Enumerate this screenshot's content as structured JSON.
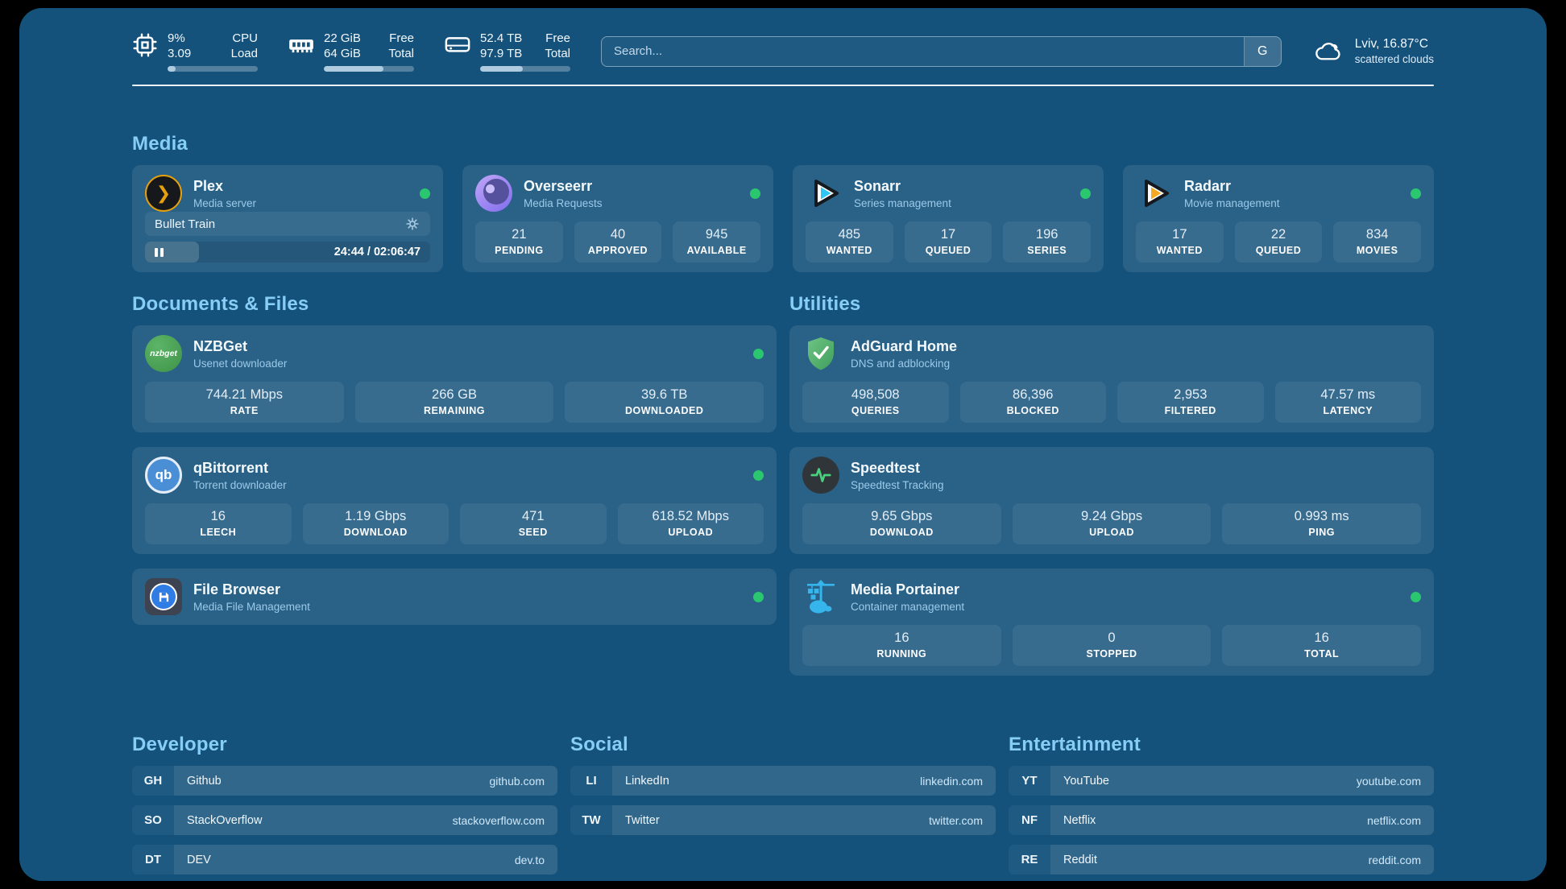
{
  "topbar": {
    "stats": [
      {
        "values": [
          "9%",
          "3.09"
        ],
        "labels": [
          "CPU",
          "Load"
        ],
        "progress": 9
      },
      {
        "values": [
          "22 GiB",
          "64 GiB"
        ],
        "labels": [
          "Free",
          "Total"
        ],
        "progress": 66
      },
      {
        "values": [
          "52.4 TB",
          "97.9 TB"
        ],
        "labels": [
          "Free",
          "Total"
        ],
        "progress": 47
      }
    ],
    "search": {
      "placeholder": "Search...",
      "button_label": "G"
    },
    "weather": {
      "location": "Lviv, 16.87°C",
      "condition": "scattered clouds"
    }
  },
  "media": {
    "section_title": "Media",
    "plex": {
      "name": "Plex",
      "subtitle": "Media server",
      "now_playing": "Bullet Train",
      "time_display": "24:44 / 02:06:47",
      "progress": 19
    },
    "overseerr": {
      "name": "Overseerr",
      "subtitle": "Media Requests",
      "stats": [
        {
          "value": "21",
          "label": "PENDING"
        },
        {
          "value": "40",
          "label": "APPROVED"
        },
        {
          "value": "945",
          "label": "AVAILABLE"
        }
      ]
    },
    "sonarr": {
      "name": "Sonarr",
      "subtitle": "Series management",
      "stats": [
        {
          "value": "485",
          "label": "WANTED"
        },
        {
          "value": "17",
          "label": "QUEUED"
        },
        {
          "value": "196",
          "label": "SERIES"
        }
      ]
    },
    "radarr": {
      "name": "Radarr",
      "subtitle": "Movie management",
      "stats": [
        {
          "value": "17",
          "label": "WANTED"
        },
        {
          "value": "22",
          "label": "QUEUED"
        },
        {
          "value": "834",
          "label": "MOVIES"
        }
      ]
    }
  },
  "documents": {
    "section_title": "Documents & Files",
    "nzbget": {
      "name": "NZBGet",
      "subtitle": "Usenet downloader",
      "logo_text": "nzbget",
      "stats": [
        {
          "value": "744.21 Mbps",
          "label": "RATE"
        },
        {
          "value": "266 GB",
          "label": "REMAINING"
        },
        {
          "value": "39.6 TB",
          "label": "DOWNLOADED"
        }
      ]
    },
    "qbittorrent": {
      "name": "qBittorrent",
      "subtitle": "Torrent downloader",
      "logo_text": "qb",
      "stats": [
        {
          "value": "16",
          "label": "LEECH"
        },
        {
          "value": "1.19 Gbps",
          "label": "DOWNLOAD"
        },
        {
          "value": "471",
          "label": "SEED"
        },
        {
          "value": "618.52 Mbps",
          "label": "UPLOAD"
        }
      ]
    },
    "filebrowser": {
      "name": "File Browser",
      "subtitle": "Media File Management"
    }
  },
  "utilities": {
    "section_title": "Utilities",
    "adguard": {
      "name": "AdGuard Home",
      "subtitle": "DNS and adblocking",
      "stats": [
        {
          "value": "498,508",
          "label": "QUERIES"
        },
        {
          "value": "86,396",
          "label": "BLOCKED"
        },
        {
          "value": "2,953",
          "label": "FILTERED"
        },
        {
          "value": "47.57 ms",
          "label": "LATENCY"
        }
      ]
    },
    "speedtest": {
      "name": "Speedtest",
      "subtitle": "Speedtest Tracking",
      "stats": [
        {
          "value": "9.65 Gbps",
          "label": "DOWNLOAD"
        },
        {
          "value": "9.24 Gbps",
          "label": "UPLOAD"
        },
        {
          "value": "0.993 ms",
          "label": "PING"
        }
      ]
    },
    "portainer": {
      "name": "Media Portainer",
      "subtitle": "Container management",
      "stats": [
        {
          "value": "16",
          "label": "RUNNING"
        },
        {
          "value": "0",
          "label": "STOPPED"
        },
        {
          "value": "16",
          "label": "TOTAL"
        }
      ]
    }
  },
  "links": {
    "developer": {
      "section_title": "Developer",
      "items": [
        {
          "abbr": "GH",
          "name": "Github",
          "url": "github.com"
        },
        {
          "abbr": "SO",
          "name": "StackOverflow",
          "url": "stackoverflow.com"
        },
        {
          "abbr": "DT",
          "name": "DEV",
          "url": "dev.to"
        }
      ]
    },
    "social": {
      "section_title": "Social",
      "items": [
        {
          "abbr": "LI",
          "name": "LinkedIn",
          "url": "linkedin.com"
        },
        {
          "abbr": "TW",
          "name": "Twitter",
          "url": "twitter.com"
        }
      ]
    },
    "entertainment": {
      "section_title": "Entertainment",
      "items": [
        {
          "abbr": "YT",
          "name": "YouTube",
          "url": "youtube.com"
        },
        {
          "abbr": "NF",
          "name": "Netflix",
          "url": "netflix.com"
        },
        {
          "abbr": "RE",
          "name": "Reddit",
          "url": "reddit.com"
        }
      ]
    }
  },
  "colors": {
    "background": "#14527C",
    "heading_accent": "#87CEF5",
    "status_online": "#2BC76F",
    "plex_gold": "#e5a00d"
  }
}
